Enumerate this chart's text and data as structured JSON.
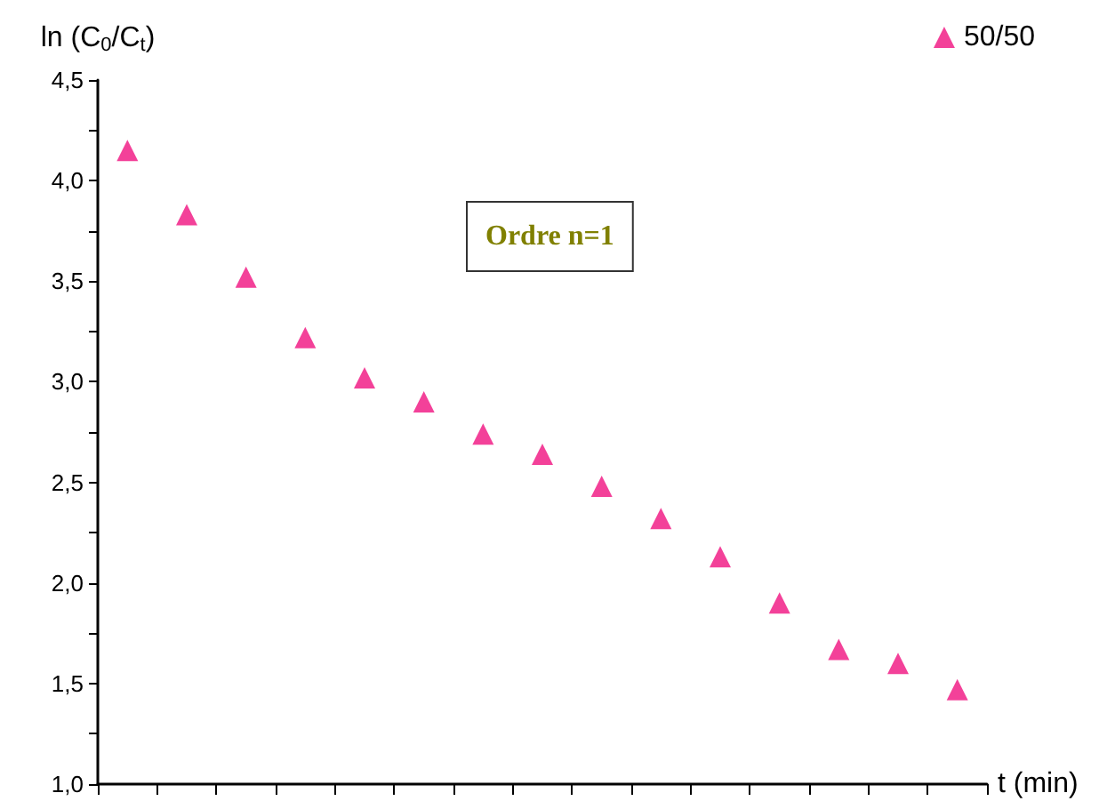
{
  "chart_data": {
    "type": "scatter",
    "xlabel": "t (min)",
    "ylabel": "ln (C$_{0}$/C$_{t}$)",
    "categories": [
      null,
      null,
      null,
      null,
      null,
      null,
      null,
      null,
      null,
      null,
      null,
      null,
      null,
      null,
      null
    ],
    "series": [
      {
        "name": "50/50",
        "color": "#f0127f",
        "values": [
          4.15,
          3.83,
          3.52,
          3.22,
          3.02,
          2.9,
          2.74,
          2.64,
          2.48,
          2.32,
          2.13,
          1.9,
          1.67,
          1.6,
          1.47
        ]
      }
    ],
    "ylim": [
      1,
      4.5
    ],
    "yticks": [
      {
        "value": 1,
        "label": "1,0"
      },
      {
        "value": 1.25,
        "label": null
      },
      {
        "value": 1.5,
        "label": "1,5"
      },
      {
        "value": 1.75,
        "label": null
      },
      {
        "value": 2,
        "label": "2,0"
      },
      {
        "value": 2.25,
        "label": null
      },
      {
        "value": 2.5,
        "label": "2,5"
      },
      {
        "value": 2.75,
        "label": null
      },
      {
        "value": 3,
        "label": "3,0"
      },
      {
        "value": 3.25,
        "label": null
      },
      {
        "value": 3.5,
        "label": "3,5"
      },
      {
        "value": 3.75,
        "label": null
      },
      {
        "value": 4,
        "label": "4,0"
      },
      {
        "value": 4.25,
        "label": null
      },
      {
        "value": 4.5,
        "label": "4,5"
      }
    ],
    "tick_labels": "y",
    "marker": "triangle",
    "legend": "top right",
    "grid": false,
    "annotations": [
      "Ordre n=1"
    ]
  }
}
